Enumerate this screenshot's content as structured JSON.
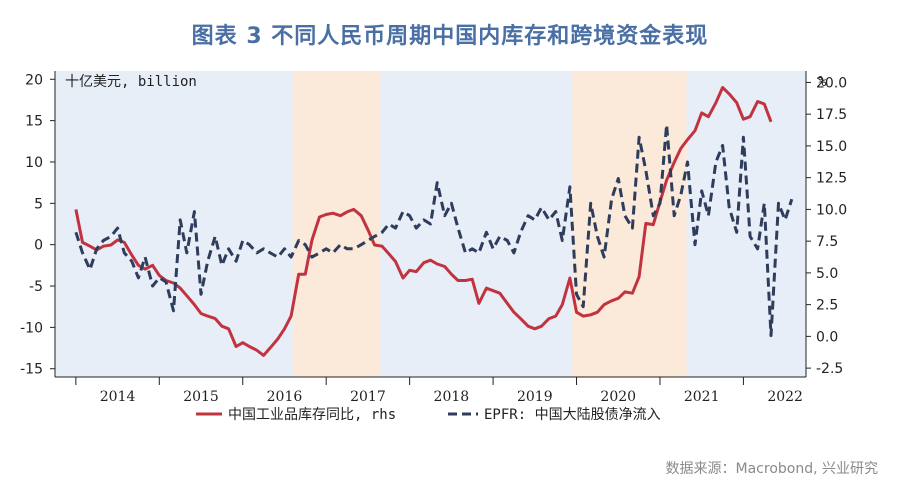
{
  "title": "图表 3 不同人民币周期中国内库存和跨境资金表现",
  "source": "数据来源：Macrobond, 兴业研究",
  "chart_data": {
    "type": "line",
    "left_unit_label": "十亿美元, billion",
    "right_unit_label": "%",
    "x_range": [
      2013.75,
      2022.75
    ],
    "left_axis": {
      "ylim": [
        -16,
        21
      ],
      "ticks": [
        "20",
        "15",
        "10",
        "5",
        "0",
        "-5",
        "-10",
        "-15"
      ],
      "tick_values": [
        20,
        15,
        10,
        5,
        0,
        -5,
        -10,
        -15
      ]
    },
    "right_axis": {
      "ylim": [
        -3.2,
        20.9
      ],
      "ticks": [
        "20.0",
        "17.5",
        "15.0",
        "12.5",
        "10.0",
        "7.5",
        "5.0",
        "2.5",
        "0.0",
        "-2.5"
      ],
      "tick_values": [
        20,
        17.5,
        15,
        12.5,
        10,
        7.5,
        5,
        2.5,
        0,
        -2.5
      ]
    },
    "x_tick_labels": [
      "2014",
      "2015",
      "2016",
      "2017",
      "2018",
      "2019",
      "2020",
      "2021",
      "2022"
    ],
    "x_tick_values": [
      2014.0,
      2015.0,
      2016.0,
      2017.0,
      2018.0,
      2019.0,
      2020.0,
      2021.0,
      2022.0
    ],
    "shaded_periods": [
      {
        "start": 2013.75,
        "end": 2016.6,
        "color": "#e8eef8"
      },
      {
        "start": 2016.6,
        "end": 2017.65,
        "color": "#fbe9da"
      },
      {
        "start": 2017.65,
        "end": 2019.95,
        "color": "#e8eef8"
      },
      {
        "start": 2019.95,
        "end": 2021.32,
        "color": "#fbe9da"
      },
      {
        "start": 2021.32,
        "end": 2022.75,
        "color": "#e8eef8"
      }
    ],
    "series": [
      {
        "name": "中国工业品库存同比, rhs",
        "axis": "right",
        "style": "solid",
        "color": "#c1333f",
        "x": [
          2014.0,
          2014.08,
          2014.17,
          2014.25,
          2014.33,
          2014.42,
          2014.5,
          2014.58,
          2014.67,
          2014.75,
          2014.83,
          2014.92,
          2015.0,
          2015.08,
          2015.17,
          2015.25,
          2015.33,
          2015.42,
          2015.5,
          2015.58,
          2015.67,
          2015.75,
          2015.83,
          2015.92,
          2016.0,
          2016.08,
          2016.17,
          2016.25,
          2016.33,
          2016.42,
          2016.5,
          2016.58,
          2016.67,
          2016.75,
          2016.83,
          2016.92,
          2017.0,
          2017.08,
          2017.17,
          2017.25,
          2017.33,
          2017.42,
          2017.5,
          2017.58,
          2017.67,
          2017.75,
          2017.83,
          2017.92,
          2018.0,
          2018.08,
          2018.17,
          2018.25,
          2018.33,
          2018.42,
          2018.5,
          2018.58,
          2018.67,
          2018.75,
          2018.83,
          2018.92,
          2019.0,
          2019.08,
          2019.17,
          2019.25,
          2019.33,
          2019.42,
          2019.5,
          2019.58,
          2019.67,
          2019.75,
          2019.83,
          2019.92,
          2020.0,
          2020.08,
          2020.17,
          2020.25,
          2020.33,
          2020.42,
          2020.5,
          2020.58,
          2020.67,
          2020.75,
          2020.83,
          2020.92,
          2021.0,
          2021.08,
          2021.17,
          2021.25,
          2021.33,
          2021.42,
          2021.5,
          2021.58,
          2021.67,
          2021.75,
          2021.83,
          2021.92,
          2022.0,
          2022.08,
          2022.17,
          2022.25,
          2022.33
        ],
        "values": [
          10.0,
          7.4,
          7.1,
          6.8,
          7.1,
          7.2,
          7.6,
          7.4,
          6.4,
          5.6,
          5.3,
          5.6,
          4.8,
          4.4,
          4.2,
          3.8,
          3.2,
          2.5,
          1.8,
          1.6,
          1.4,
          0.8,
          0.6,
          -0.8,
          -0.5,
          -0.8,
          -1.1,
          -1.5,
          -0.9,
          -0.2,
          0.6,
          1.6,
          4.9,
          4.9,
          7.6,
          9.4,
          9.6,
          9.7,
          9.5,
          9.8,
          10.0,
          9.5,
          8.4,
          7.2,
          7.1,
          6.5,
          5.9,
          4.6,
          5.2,
          5.1,
          5.8,
          6.0,
          5.7,
          5.5,
          4.9,
          4.4,
          4.4,
          4.5,
          2.6,
          3.8,
          3.6,
          3.4,
          2.6,
          1.9,
          1.4,
          0.8,
          0.6,
          0.8,
          1.4,
          1.6,
          2.5,
          4.6,
          1.9,
          1.6,
          1.7,
          1.9,
          2.5,
          2.8,
          3.0,
          3.5,
          3.4,
          4.7,
          8.9,
          8.8,
          10.6,
          12.3,
          13.7,
          14.8,
          15.5,
          16.2,
          17.6,
          17.3,
          18.4,
          19.6,
          19.1,
          18.4,
          17.1,
          17.3,
          18.5,
          18.3,
          16.9
        ]
      },
      {
        "name": "EPFR: 中国大陆股债净流入",
        "axis": "left",
        "style": "dashed",
        "color": "#2e3d5c",
        "x": [
          2014.0,
          2014.08,
          2014.17,
          2014.25,
          2014.33,
          2014.42,
          2014.5,
          2014.58,
          2014.67,
          2014.75,
          2014.83,
          2014.92,
          2015.0,
          2015.08,
          2015.17,
          2015.25,
          2015.33,
          2015.42,
          2015.5,
          2015.58,
          2015.67,
          2015.75,
          2015.83,
          2015.92,
          2016.0,
          2016.08,
          2016.17,
          2016.25,
          2016.33,
          2016.42,
          2016.5,
          2016.58,
          2016.67,
          2016.75,
          2016.83,
          2016.92,
          2017.0,
          2017.08,
          2017.17,
          2017.25,
          2017.33,
          2017.42,
          2017.5,
          2017.58,
          2017.67,
          2017.75,
          2017.83,
          2017.92,
          2018.0,
          2018.08,
          2018.17,
          2018.25,
          2018.33,
          2018.42,
          2018.5,
          2018.58,
          2018.67,
          2018.75,
          2018.83,
          2018.92,
          2019.0,
          2019.08,
          2019.17,
          2019.25,
          2019.33,
          2019.42,
          2019.5,
          2019.58,
          2019.67,
          2019.75,
          2019.83,
          2019.92,
          2020.0,
          2020.08,
          2020.17,
          2020.25,
          2020.33,
          2020.42,
          2020.5,
          2020.58,
          2020.67,
          2020.75,
          2020.83,
          2020.92,
          2021.0,
          2021.08,
          2021.17,
          2021.25,
          2021.33,
          2021.42,
          2021.5,
          2021.58,
          2021.67,
          2021.75,
          2021.83,
          2021.92,
          2022.0,
          2022.08,
          2022.17,
          2022.25,
          2022.33,
          2022.42,
          2022.5,
          2022.58
        ],
        "values": [
          1.5,
          -1.0,
          -3.0,
          -0.5,
          0.5,
          1.0,
          2.0,
          -1.0,
          -2.0,
          -4.0,
          -1.5,
          -5.0,
          -4.0,
          -4.5,
          -8.0,
          3.0,
          -1.0,
          4.0,
          -6.0,
          -2.0,
          1.0,
          -2.5,
          -0.5,
          -2.0,
          0.5,
          0.0,
          -1.0,
          -0.5,
          -1.0,
          -1.5,
          -0.5,
          -1.5,
          0.5,
          0.0,
          -1.5,
          -1.0,
          -0.5,
          -1.0,
          0.0,
          -0.5,
          -0.5,
          0.0,
          0.5,
          1.0,
          1.5,
          2.5,
          2.0,
          4.0,
          3.5,
          2.0,
          3.0,
          2.5,
          7.5,
          3.5,
          5.0,
          2.0,
          -1.0,
          -0.5,
          -1.0,
          1.5,
          -0.5,
          1.0,
          0.5,
          -1.0,
          1.5,
          3.5,
          3.0,
          4.5,
          3.0,
          4.0,
          0.5,
          7.0,
          -6.0,
          -7.5,
          5.0,
          1.0,
          -1.5,
          5.5,
          8.0,
          3.5,
          2.0,
          13.0,
          9.0,
          3.5,
          5.0,
          14.5,
          3.5,
          6.0,
          10.0,
          0.0,
          6.5,
          3.5,
          10.0,
          12.0,
          4.5,
          1.5,
          13.0,
          1.0,
          -0.5,
          5.0,
          -11.0,
          5.0,
          3.0,
          5.5
        ]
      }
    ],
    "legend_position": "bottom-center"
  }
}
